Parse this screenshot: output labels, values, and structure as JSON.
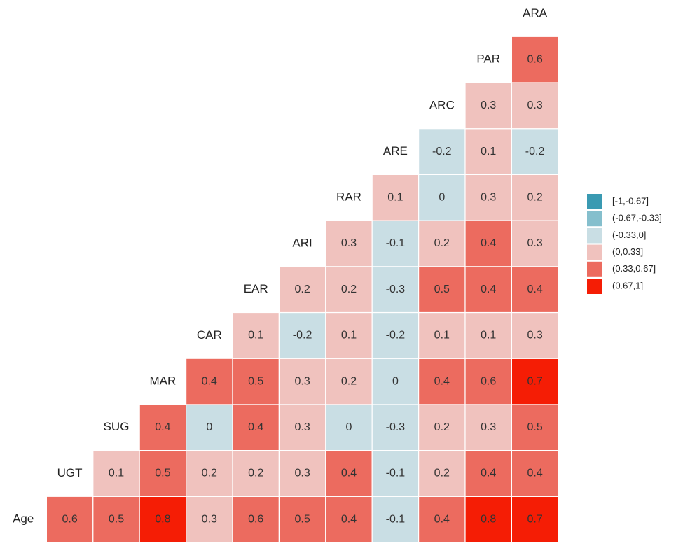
{
  "chart_data": {
    "type": "heatmap",
    "variables": [
      "Age",
      "UGT",
      "SUG",
      "MAR",
      "CAR",
      "EAR",
      "ARI",
      "RAR",
      "ARE",
      "ARC",
      "PAR",
      "ARA"
    ],
    "values": [
      [
        0.6,
        0.5,
        0.8,
        0.3,
        0.6,
        0.5,
        0.4,
        -0.1,
        0.4,
        0.8,
        0.7
      ],
      [
        0.1,
        0.5,
        0.2,
        0.2,
        0.3,
        0.4,
        -0.1,
        0.2,
        0.4,
        0.4
      ],
      [
        0.4,
        0,
        0.4,
        0.3,
        0,
        -0.3,
        0.2,
        0.3,
        0.5
      ],
      [
        0.4,
        0.5,
        0.3,
        0.2,
        0,
        0.4,
        0.6,
        0.7
      ],
      [
        0.1,
        -0.2,
        0.1,
        -0.2,
        0.1,
        0.1,
        0.3
      ],
      [
        0.2,
        0.2,
        -0.3,
        0.5,
        0.4,
        0.4
      ],
      [
        0.3,
        -0.1,
        0.2,
        0.4,
        0.3
      ],
      [
        0.1,
        0,
        0.3,
        0.2
      ],
      [
        -0.2,
        0.1,
        -0.2
      ],
      [
        0.3,
        0.3
      ],
      [
        0.6
      ]
    ],
    "breaks": [
      -1,
      -0.67,
      -0.33,
      0,
      0.33,
      0.67,
      1
    ],
    "legend": [
      {
        "label": "[-1,-0.67]",
        "color": "#3a9ab2"
      },
      {
        "label": "(-0.67,-0.33]",
        "color": "#85bfcd"
      },
      {
        "label": "(-0.33,0]",
        "color": "#c9dee4"
      },
      {
        "label": "(0,0.33]",
        "color": "#f0c2be"
      },
      {
        "label": "(0.33,0.67]",
        "color": "#ec6b5f"
      },
      {
        "label": "(0.67,1]",
        "color": "#f51d05"
      }
    ]
  }
}
